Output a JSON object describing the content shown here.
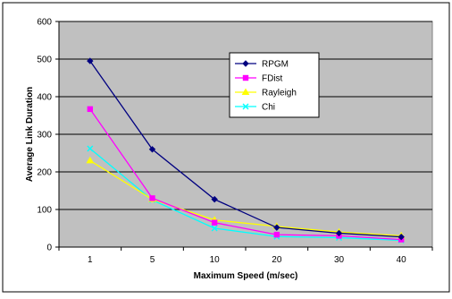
{
  "chart_data": {
    "type": "line",
    "title": "",
    "xlabel": "Maximum Speed (m/sec)",
    "ylabel": "Average Link Duration",
    "categories": [
      "1",
      "5",
      "10",
      "20",
      "30",
      "40"
    ],
    "ylim": [
      0,
      600
    ],
    "yticks": [
      0,
      100,
      200,
      300,
      400,
      500,
      600
    ],
    "grid": true,
    "plot_background": "#c0c0c0",
    "legend_position": "inside-top-center",
    "series": [
      {
        "name": "RPGM",
        "color": "#000080",
        "marker": "diamond",
        "values": [
          495,
          260,
          127,
          52,
          37,
          27
        ]
      },
      {
        "name": "FDist",
        "color": "#ff00ff",
        "marker": "square",
        "values": [
          367,
          130,
          65,
          33,
          30,
          20
        ]
      },
      {
        "name": "Rayleigh",
        "color": "#ffff00",
        "marker": "triangle",
        "values": [
          230,
          127,
          72,
          55,
          40,
          30
        ]
      },
      {
        "name": "Chi",
        "color": "#00ffff",
        "marker": "x",
        "values": [
          262,
          125,
          50,
          28,
          25,
          18
        ]
      }
    ]
  }
}
